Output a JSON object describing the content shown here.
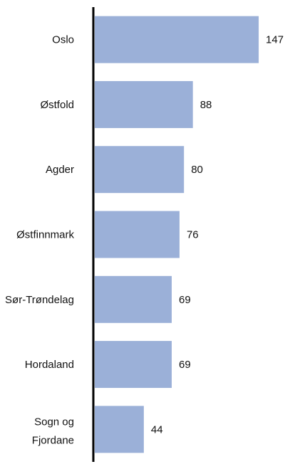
{
  "chart_data": {
    "type": "bar",
    "orientation": "horizontal",
    "categories": [
      "Oslo",
      "Østfold",
      "Agder",
      "Østfinnmark",
      "Sør-Trøndelag",
      "Hordaland",
      "Sogn og Fjordane"
    ],
    "values": [
      147,
      88,
      80,
      76,
      69,
      69,
      44
    ],
    "bar_color": "#9bb0d8",
    "axis_color": "#000000",
    "grid": false,
    "legend": "none"
  }
}
